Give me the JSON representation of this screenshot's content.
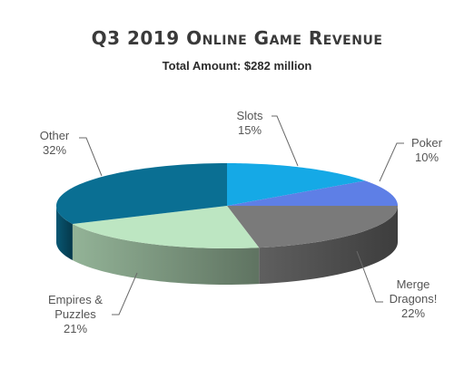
{
  "chart_data": {
    "type": "pie",
    "title": "Q3 2019 Online Game Revenue",
    "subtitle": "Total Amount: $282 million",
    "slices": [
      {
        "name": "Slots",
        "percent": 15,
        "label_lines": [
          "Slots",
          "15%"
        ],
        "color": "#15A9E6"
      },
      {
        "name": "Poker",
        "percent": 10,
        "label_lines": [
          "Poker",
          "10%"
        ],
        "color": "#5E7FE6"
      },
      {
        "name": "Merge Dragons!",
        "percent": 22,
        "label_lines": [
          "Merge",
          "Dragons!",
          "22%"
        ],
        "color": "#7A7A7A"
      },
      {
        "name": "Empires & Puzzles",
        "percent": 21,
        "label_lines": [
          "Empires &",
          "Puzzles",
          "21%"
        ],
        "color": "#BDE6C2"
      },
      {
        "name": "Other",
        "percent": 32,
        "label_lines": [
          "Other",
          "32%"
        ],
        "color": "#0A6F93"
      }
    ]
  }
}
